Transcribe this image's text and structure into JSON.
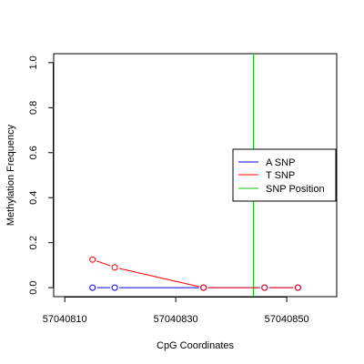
{
  "chart_data": {
    "type": "line",
    "xlabel": "CpG Coordinates",
    "ylabel": "Methylation Frequency",
    "xlim": [
      57040808,
      57040859
    ],
    "ylim": [
      -0.04,
      1.04
    ],
    "x_ticks": [
      57040810,
      57040830,
      57040850
    ],
    "x_tick_labels": [
      "57040810",
      "57040830",
      "57040850"
    ],
    "y_ticks": [
      0.0,
      0.2,
      0.4,
      0.6,
      0.8,
      1.0
    ],
    "y_tick_labels": [
      "0.0",
      "0.2",
      "0.4",
      "0.6",
      "0.8",
      "1.0"
    ],
    "grid": false,
    "legend_position": "right",
    "series": [
      {
        "name": "A SNP",
        "color": "#0000ff",
        "x": [
          57040815,
          57040819,
          57040835,
          57040846,
          57040852
        ],
        "y": [
          0.0,
          0.0,
          0.0,
          0.0,
          0.0
        ]
      },
      {
        "name": "T SNP",
        "color": "#ff0000",
        "x": [
          57040815,
          57040819,
          57040835,
          57040846,
          57040852
        ],
        "y": [
          0.125,
          0.09,
          0.0,
          0.0,
          0.0
        ]
      },
      {
        "name": "SNP Position",
        "color": "#00cc00",
        "vline_x": 57040844
      }
    ]
  }
}
